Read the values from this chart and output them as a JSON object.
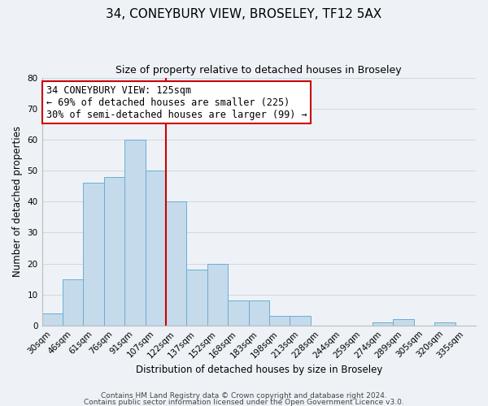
{
  "title": "34, CONEYBURY VIEW, BROSELEY, TF12 5AX",
  "subtitle": "Size of property relative to detached houses in Broseley",
  "xlabel": "Distribution of detached houses by size in Broseley",
  "ylabel": "Number of detached properties",
  "bar_labels": [
    "30sqm",
    "46sqm",
    "61sqm",
    "76sqm",
    "91sqm",
    "107sqm",
    "122sqm",
    "137sqm",
    "152sqm",
    "168sqm",
    "183sqm",
    "198sqm",
    "213sqm",
    "228sqm",
    "244sqm",
    "259sqm",
    "274sqm",
    "289sqm",
    "305sqm",
    "320sqm",
    "335sqm"
  ],
  "bar_heights": [
    4,
    15,
    46,
    48,
    60,
    50,
    40,
    18,
    20,
    8,
    8,
    3,
    3,
    0,
    0,
    0,
    1,
    2,
    0,
    1,
    0
  ],
  "bar_color": "#c5daea",
  "bar_edge_color": "#6aaed6",
  "highlight_line_color": "#cc0000",
  "annotation_box_edge_color": "#cc0000",
  "annotation_line1": "34 CONEYBURY VIEW: 125sqm",
  "annotation_line2": "← 69% of detached houses are smaller (225)",
  "annotation_line3": "30% of semi-detached houses are larger (99) →",
  "ylim": [
    0,
    80
  ],
  "yticks": [
    0,
    10,
    20,
    30,
    40,
    50,
    60,
    70,
    80
  ],
  "grid_color": "#ccd8e0",
  "background_color": "#eef2f7",
  "footer_line1": "Contains HM Land Registry data © Crown copyright and database right 2024.",
  "footer_line2": "Contains public sector information licensed under the Open Government Licence v3.0.",
  "title_fontsize": 11,
  "subtitle_fontsize": 9,
  "axis_label_fontsize": 8.5,
  "tick_fontsize": 7.5,
  "annotation_fontsize": 8.5,
  "footer_fontsize": 6.5
}
